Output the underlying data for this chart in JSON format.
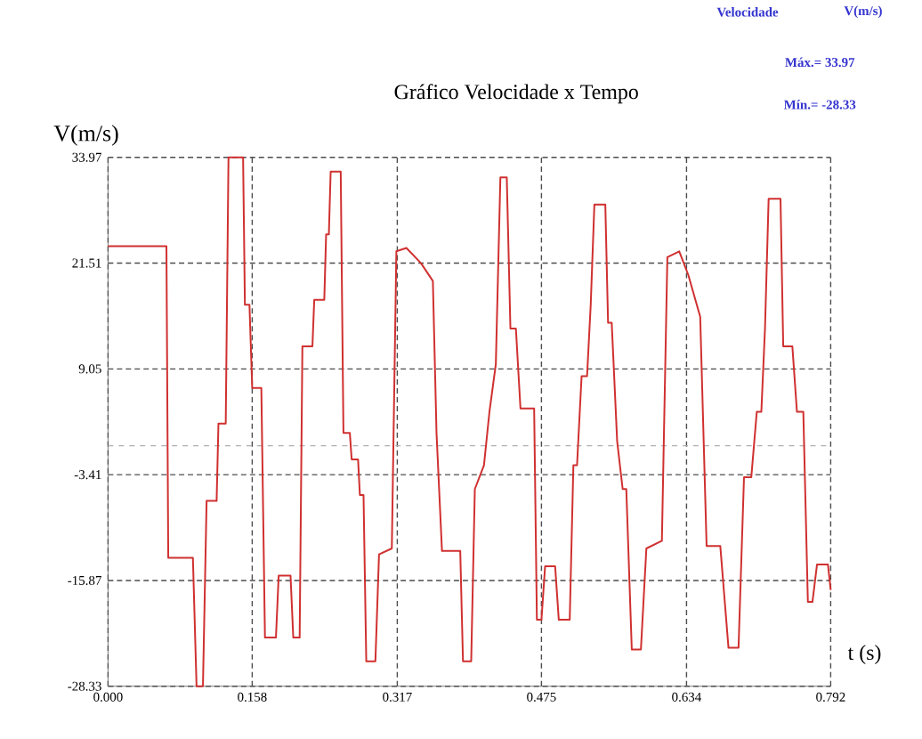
{
  "chart_data": {
    "type": "line",
    "title": "Gráfico Velocidade x Tempo",
    "xlabel": "t (s)",
    "ylabel": "V(m/s)",
    "annotations": [
      "Velocidade",
      "V(m/s)",
      "Máx.= 33.97",
      "Mín.= -28.33"
    ],
    "xlim": [
      0,
      0.792
    ],
    "ylim": [
      -28.33,
      33.97
    ],
    "xticks": [
      {
        "value": 0,
        "label": "0.000"
      },
      0.158,
      0.317,
      0.475,
      0.634,
      0.792
    ],
    "yticks": [
      -28.33,
      -15.87,
      -3.41,
      9.05,
      21.51,
      33.97
    ],
    "grid": true,
    "ref_lines": [
      {
        "axis": "y",
        "value": 0,
        "color": "#b0b0b0",
        "line_style": "dashed"
      }
    ],
    "series": [
      {
        "color": "#d03030",
        "x": [
          0,
          0.064,
          0.066,
          0.093,
          0.097,
          0.104,
          0.108,
          0.119,
          0.121,
          0.129,
          0.132,
          0.148,
          0.15,
          0.155,
          0.158,
          0.168,
          0.172,
          0.184,
          0.187,
          0.2,
          0.203,
          0.21,
          0.213,
          0.224,
          0.226,
          0.237,
          0.239,
          0.242,
          0.244,
          0.255,
          0.258,
          0.265,
          0.267,
          0.274,
          0.276,
          0.28,
          0.283,
          0.293,
          0.297,
          0.311,
          0.316,
          0.327,
          0.343,
          0.356,
          0.36,
          0.366,
          0.386,
          0.389,
          0.398,
          0.402,
          0.412,
          0.418,
          0.425,
          0.43,
          0.437,
          0.441,
          0.447,
          0.452,
          0.467,
          0.47,
          0.475,
          0.479,
          0.49,
          0.494,
          0.506,
          0.51,
          0.514,
          0.519,
          0.525,
          0.529,
          0.533,
          0.545,
          0.548,
          0.552,
          0.558,
          0.564,
          0.568,
          0.574,
          0.584,
          0.59,
          0.607,
          0.613,
          0.626,
          0.636,
          0.649,
          0.656,
          0.671,
          0.68,
          0.691,
          0.697,
          0.705,
          0.711,
          0.716,
          0.72,
          0.724,
          0.737,
          0.74,
          0.75,
          0.755,
          0.762,
          0.767,
          0.772,
          0.777,
          0.789,
          0.792
        ],
        "values": [
          23.5,
          23.5,
          -13.2,
          -13.2,
          -28.33,
          -28.33,
          -6.5,
          -6.5,
          2.6,
          2.6,
          33.97,
          33.97,
          16.6,
          16.6,
          6.8,
          6.8,
          -22.6,
          -22.6,
          -15.3,
          -15.3,
          -22.6,
          -22.6,
          11.7,
          11.7,
          17.2,
          17.2,
          24.9,
          24.9,
          32.3,
          32.3,
          1.5,
          1.5,
          -1.6,
          -1.6,
          -5.8,
          -5.8,
          -25.4,
          -25.4,
          -12.8,
          -12.1,
          22.9,
          23.3,
          21.5,
          19.4,
          1.5,
          -12.4,
          -12.4,
          -25.4,
          -25.4,
          -5.1,
          -2.3,
          4.0,
          9.6,
          31.6,
          31.6,
          13.8,
          13.8,
          4.4,
          4.4,
          -20.5,
          -20.5,
          -14.2,
          -14.2,
          -20.5,
          -20.5,
          -2.3,
          -2.3,
          8.2,
          8.2,
          16.6,
          28.4,
          28.4,
          14.5,
          14.5,
          0.5,
          -5.1,
          -5.1,
          -24.0,
          -24.0,
          -12.1,
          -11.2,
          22.2,
          22.9,
          20.1,
          15.2,
          -11.8,
          -11.8,
          -23.8,
          -23.8,
          -3.7,
          -3.7,
          4.0,
          4.0,
          13.8,
          29.1,
          29.1,
          11.7,
          11.7,
          4.0,
          4.0,
          -18.4,
          -18.4,
          -14.0,
          -14.0,
          -17.0
        ]
      }
    ]
  }
}
